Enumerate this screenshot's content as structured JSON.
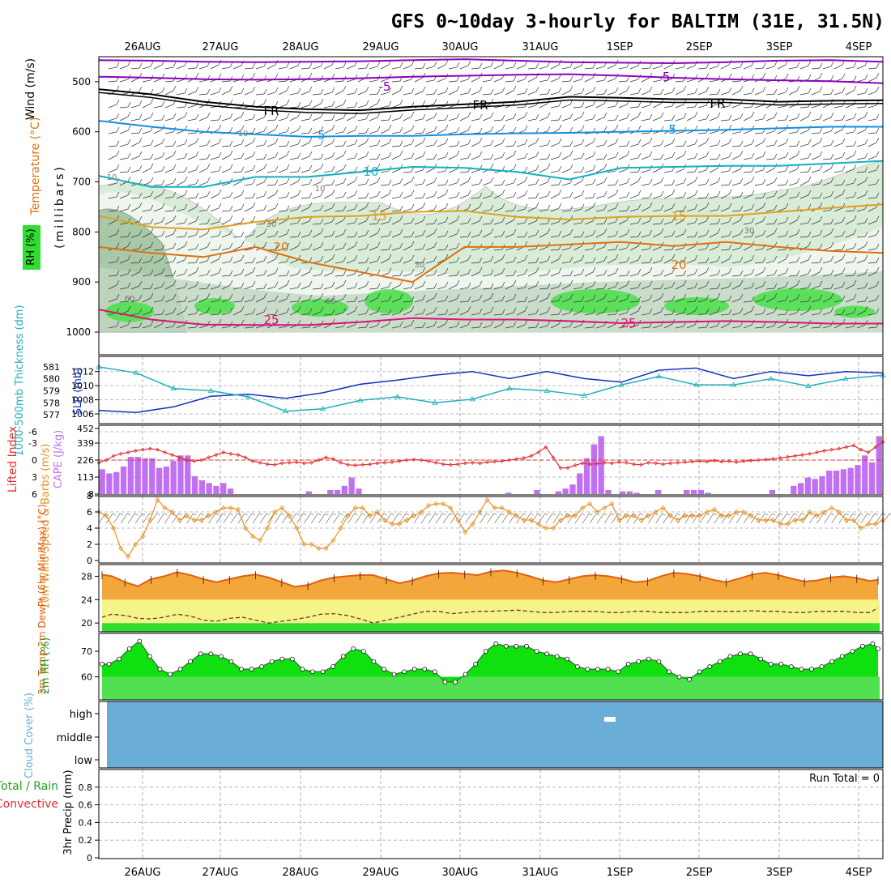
{
  "title": "GFS 0~10day 3-hourly for BALTIM (31E, 31.5N)",
  "dates": [
    "26AUG",
    "27AUG",
    "28AUG",
    "29AUG",
    "30AUG",
    "31AUG",
    "1SEP",
    "2SEP",
    "3SEP",
    "4SEP"
  ],
  "colors": {
    "purple": "#9000c0",
    "black": "#000000",
    "blue": "#1090e0",
    "cyan": "#10b0c0",
    "orange_light": "#e0a020",
    "orange": "#e07010",
    "magenta": "#e0107a",
    "slp": "#1030c0",
    "thickness": "#20b0c0",
    "cape": "#c070f0",
    "lifted": "#e03030",
    "wind": "#e89020",
    "temp_fill": "#f3a63a",
    "temp_top": "#e06010",
    "yellow": "#f4f488",
    "green": "#30dd30",
    "green_light": "#50e050",
    "cloud": "#6aadd6",
    "rh_dark": "#58a058",
    "rh_light": "#d8ecd8"
  },
  "chart_data": [
    {
      "type": "contour",
      "panel": "upper-air",
      "ylabel_wind": "Wind (m/s)",
      "ylabel_temp": "Temperature (°C)",
      "ylabel_rh": "RH (%)",
      "ylabel_p": "(millibars)",
      "y_ticks": [
        "500",
        "600",
        "700",
        "800",
        "900",
        "1000"
      ],
      "ylim": [
        450,
        1000
      ],
      "contour_labels": [
        "-5",
        "-5",
        "FR",
        "FR",
        "FR",
        "5",
        "5",
        "10",
        "15",
        "15",
        "20",
        "20",
        "25",
        "25"
      ],
      "rh_labels": [
        "10",
        "10",
        "10",
        "30",
        "30",
        "30",
        "60",
        "60"
      ],
      "isotherms": [
        {
          "name": "-10",
          "color": "purple",
          "values": [
            457,
            458,
            460,
            461,
            460,
            459,
            457,
            455,
            458,
            461,
            462,
            463,
            461,
            458,
            457,
            460
          ]
        },
        {
          "name": "-5",
          "color": "purple",
          "values": [
            490,
            492,
            495,
            496,
            495,
            493,
            490,
            488,
            486,
            485,
            488,
            492,
            495,
            497,
            499,
            503
          ]
        },
        {
          "name": "FR",
          "color": "black",
          "values": [
            515,
            525,
            540,
            550,
            555,
            557,
            550,
            545,
            540,
            530,
            532,
            535,
            535,
            540,
            538,
            537
          ]
        },
        {
          "name": "5",
          "color": "blue",
          "values": [
            578,
            590,
            600,
            605,
            610,
            608,
            608,
            605,
            603,
            602,
            600,
            598,
            596,
            593,
            590,
            590
          ]
        },
        {
          "name": "10",
          "color": "cyan",
          "values": [
            688,
            710,
            710,
            690,
            690,
            680,
            670,
            672,
            680,
            695,
            672,
            670,
            668,
            668,
            663,
            658
          ]
        },
        {
          "name": "15",
          "color": "orange_light",
          "values": [
            768,
            790,
            795,
            780,
            770,
            768,
            760,
            758,
            770,
            775,
            770,
            768,
            768,
            760,
            752,
            745
          ]
        },
        {
          "name": "20",
          "color": "orange",
          "values": [
            830,
            842,
            850,
            830,
            860,
            880,
            900,
            830,
            830,
            825,
            820,
            828,
            820,
            830,
            838,
            842
          ]
        },
        {
          "name": "25",
          "color": "magenta",
          "values": [
            955,
            975,
            985,
            986,
            986,
            980,
            972,
            975,
            975,
            978,
            982,
            980,
            978,
            980,
            983,
            983
          ]
        }
      ]
    },
    {
      "type": "line",
      "panel": "slp-thickness",
      "ylabel_left": "1000-500mb Thickness (dm)",
      "ylabel_right": "SLP (mb)",
      "left_ticks": [
        "581",
        "580",
        "579",
        "578",
        "577"
      ],
      "right_ticks": [
        "1012",
        "1010",
        "1008",
        "1006"
      ],
      "series": [
        {
          "key": "slp",
          "values": [
            1006.5,
            1006.2,
            1007.0,
            1008.5,
            1008.8,
            1008.2,
            1009.0,
            1010.2,
            1010.8,
            1011.5,
            1012.0,
            1011.0,
            1012.0,
            1011.0,
            1010.5,
            1012.2,
            1012.5,
            1011.0,
            1012.0,
            1011.4,
            1012.0,
            1011.8
          ]
        },
        {
          "key": "thickness",
          "values": [
            581.0,
            580.5,
            579.2,
            579.0,
            578.5,
            577.3,
            577.5,
            578.2,
            578.5,
            578.0,
            578.3,
            579.2,
            579.0,
            578.6,
            579.5,
            580.2,
            579.5,
            579.5,
            580.0,
            579.4,
            580.0,
            580.3
          ]
        }
      ]
    },
    {
      "type": "bar",
      "panel": "cape-li",
      "ylabel_left": "Lifted Index",
      "ylabel_right": "CAPE (J/kg)",
      "left_ticks": [
        "-6",
        "-3",
        "0",
        "3",
        "6"
      ],
      "right_ticks": [
        "452",
        "339",
        "226",
        "113",
        "8"
      ],
      "cape": [
        180,
        150,
        160,
        200,
        270,
        270,
        260,
        260,
        190,
        200,
        240,
        280,
        280,
        130,
        100,
        80,
        60,
        80,
        40,
        0,
        0,
        0,
        0,
        0,
        0,
        0,
        0,
        0,
        0,
        20,
        0,
        0,
        30,
        30,
        60,
        120,
        40,
        0,
        0,
        0,
        0,
        0,
        0,
        0,
        0,
        0,
        0,
        0,
        0,
        0,
        0,
        0,
        0,
        0,
        0,
        0,
        0,
        10,
        0,
        0,
        0,
        30,
        0,
        0,
        20,
        40,
        70,
        150,
        260,
        360,
        420,
        30,
        0,
        20,
        20,
        10,
        0,
        0,
        30,
        0,
        0,
        0,
        30,
        30,
        30,
        10,
        0,
        0,
        0,
        0,
        0,
        0,
        0,
        0,
        30,
        0,
        0,
        60,
        80,
        120,
        110,
        130,
        170,
        170,
        180,
        190,
        210,
        280,
        230,
        420
      ],
      "lifted_index": [
        0.5,
        0.0,
        -0.8,
        -1.2,
        -1.5,
        -1.8,
        -2.0,
        -2.2,
        -2.0,
        -1.5,
        -1.0,
        -0.5,
        0.0,
        0.2,
        0.0,
        -0.5,
        -1.0,
        -1.5,
        -1.2,
        -1.0,
        -0.5,
        0.2,
        0.5,
        0.8,
        0.9,
        0.6,
        0.5,
        0.4,
        0.6,
        0.5,
        0.0,
        -0.5,
        -0.2,
        0.5,
        0.9,
        1.0,
        0.9,
        0.8,
        0.6,
        0.5,
        0.4,
        0.2,
        0.0,
        -0.1,
        0.0,
        0.2,
        0.5,
        0.8,
        0.9,
        0.8,
        0.6,
        0.5,
        0.6,
        0.4,
        0.3,
        0.2,
        0.0,
        -0.2,
        -0.4,
        -0.8,
        -1.5,
        -2.5,
        -0.5,
        1.5,
        1.5,
        1.0,
        0.6,
        0.8,
        0.7,
        0.5,
        0.6,
        0.4,
        0.5,
        0.8,
        0.9,
        0.5,
        0.6,
        0.8,
        0.6,
        0.5,
        0.4,
        0.3,
        0.2,
        0.3,
        0.1,
        0.3,
        0.2,
        0.4,
        0.2,
        0.1,
        0.0,
        -0.1,
        -0.2,
        -0.4,
        -0.6,
        -0.8,
        -1.0,
        -1.2,
        -1.5,
        -1.8,
        -2.0,
        -2.2,
        -2.5,
        -2.8,
        -2.0,
        -1.5,
        -2.5,
        -3.5
      ]
    },
    {
      "type": "line",
      "panel": "wind10m",
      "ylabel": "10m Wind Speed & Barbs (m/s)",
      "y_ticks": [
        "8",
        "6",
        "4",
        "2",
        "0"
      ],
      "ylim": [
        0,
        8
      ],
      "values": [
        6,
        5.5,
        4,
        1.5,
        0.5,
        2,
        3,
        5,
        7.5,
        6.5,
        6,
        5,
        5.5,
        5,
        5,
        5.5,
        6,
        6.5,
        6.5,
        6.3,
        4,
        3,
        2.5,
        4,
        6,
        6.5,
        5.5,
        4,
        2,
        2,
        1.5,
        1.5,
        2.5,
        4,
        5.5,
        6.5,
        6.5,
        5.5,
        6,
        5,
        4.5,
        4.5,
        5,
        5.5,
        6,
        6.8,
        7,
        7,
        6.5,
        5,
        3.5,
        4.5,
        6,
        7.5,
        6.5,
        6.5,
        6,
        5.5,
        5,
        5,
        4.5,
        4,
        4,
        5,
        5.5,
        5.5,
        6.5,
        7,
        6,
        6.5,
        7,
        5,
        5.5,
        5.5,
        5,
        5.5,
        6,
        6.5,
        5.5,
        5,
        5.5,
        5.5,
        5.5,
        6,
        6.3,
        5.5,
        5.5,
        6,
        6,
        5.5,
        5,
        5,
        5,
        4.5,
        4.5,
        5,
        5,
        6,
        5.5,
        6,
        6.5,
        6,
        5,
        5,
        4,
        4.5,
        4.5,
        5
      ]
    },
    {
      "type": "area",
      "panel": "temp2m",
      "ylabel": "2m Temp 2m DewPt (6hr Min/Max) (°C)",
      "y_ticks": [
        "28",
        "24",
        "20"
      ],
      "ylim": [
        18.5,
        30
      ],
      "temp": [
        28.3,
        28.0,
        27.0,
        26.3,
        27.5,
        28.0,
        28.7,
        28.2,
        27.5,
        27.0,
        27.5,
        28.0,
        28.3,
        27.8,
        27.0,
        26.2,
        26.5,
        27.3,
        27.8,
        28.0,
        28.2,
        28.2,
        27.5,
        26.8,
        27.3,
        28.0,
        28.5,
        28.6,
        28.4,
        28.2,
        28.8,
        29.0,
        28.6,
        28.0,
        27.3,
        27.0,
        27.5,
        28.0,
        28.2,
        28.0,
        27.6,
        27.0,
        27.2,
        28.0,
        28.6,
        28.4,
        28.0,
        27.4,
        27.0,
        27.6,
        28.3,
        28.6,
        28.2,
        27.6,
        27.1,
        27.3,
        27.8,
        28.0,
        27.7,
        27.2,
        27.4
      ],
      "dewpt": [
        21.0,
        21.5,
        21.3,
        20.8,
        20.7,
        21.0,
        21.5,
        21.2,
        20.5,
        20.3,
        20.8,
        21.0,
        20.5,
        20.0,
        20.3,
        20.6,
        21.0,
        21.5,
        21.6,
        21.3,
        20.7,
        20.0,
        20.5,
        21.0,
        21.5,
        22.0,
        22.0,
        21.6,
        21.8,
        22.0,
        22.0,
        22.1,
        22.2,
        22.0,
        21.8,
        21.8,
        22.0,
        22.0,
        22.0,
        21.8,
        21.8,
        22.0,
        22.0,
        21.8,
        21.8,
        21.8,
        22.0,
        22.0,
        22.0,
        22.0,
        22.1,
        22.0,
        22.0,
        21.8,
        21.8,
        22.0,
        22.0,
        22.0,
        21.8,
        21.8,
        22.6
      ]
    },
    {
      "type": "area",
      "panel": "rh2m",
      "ylabel": "2m RH (%)",
      "y_ticks": [
        "70",
        "60"
      ],
      "ylim": [
        51,
        77
      ],
      "values": [
        65,
        65,
        67,
        71,
        74,
        68,
        63,
        61,
        63,
        66,
        69,
        69,
        68,
        66,
        63,
        63,
        64,
        66,
        67,
        67,
        63,
        62,
        62,
        64,
        68,
        71,
        70,
        66,
        63,
        61,
        62,
        63,
        63,
        62,
        58,
        58,
        61,
        65,
        70,
        73,
        72,
        72,
        72,
        70,
        69,
        68,
        67,
        64,
        63,
        63,
        63,
        62,
        65,
        66,
        67,
        66,
        62,
        60,
        59,
        62,
        64,
        66,
        68,
        69,
        69,
        67,
        65,
        65,
        64,
        63,
        63,
        64,
        66,
        68,
        70,
        72,
        73,
        71
      ]
    },
    {
      "type": "area",
      "panel": "cloud",
      "ylabel": "Cloud Cover (%)",
      "levels": [
        "high",
        "middle",
        "low"
      ]
    },
    {
      "type": "bar",
      "panel": "precip",
      "ylabel_total": "Total / Rain",
      "ylabel_conv": "Convective",
      "ylabel": "3hr Precip (mm)",
      "y_ticks": [
        "0.8",
        "0.6",
        "0.4",
        "0.2",
        "0"
      ],
      "ylim": [
        0,
        1
      ],
      "run_total": "Run Total = 0",
      "values": []
    }
  ]
}
